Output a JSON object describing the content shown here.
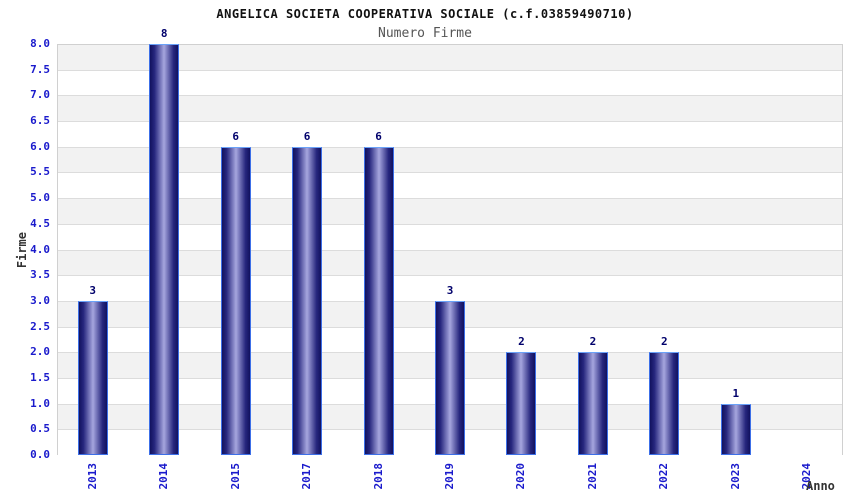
{
  "chart_data": {
    "type": "bar",
    "title": "ANGELICA SOCIETA COOPERATIVA SOCIALE (c.f.03859490710)",
    "subtitle": "Numero Firme",
    "xlabel": "Anno",
    "ylabel": "Firme",
    "categories": [
      "2013",
      "2014",
      "2015",
      "2017",
      "2018",
      "2019",
      "2020",
      "2021",
      "2022",
      "2023",
      "2024"
    ],
    "values": [
      3,
      8,
      6,
      6,
      6,
      3,
      2,
      2,
      2,
      1,
      0
    ],
    "ylim": [
      0,
      8
    ],
    "ytick_step": 0.5,
    "ytick_labels": [
      "8.0",
      "7.5",
      "7.0",
      "6.5",
      "6.0",
      "5.5",
      "5.0",
      "4.5",
      "4.0",
      "3.5",
      "3.0",
      "2.5",
      "2.0",
      "1.5",
      "1.0",
      "0.5",
      "0.0"
    ],
    "grid": "horizontal gridlines every 0.5 with alternating shaded bands",
    "legend": null
  },
  "colors": {
    "axis_tick_label": "#1a1acc",
    "bar_value_label": "#00006b",
    "bar_dark": "#12125e",
    "bar_light": "#a6a6de",
    "bar_border": "#3c6fe8",
    "band_gray": "#f2f2f2",
    "band_white": "#ffffff",
    "grid_line": "#dcdcdc",
    "plot_border": "#d0d0d0",
    "title_color": "#111111",
    "subtitle_color": "#555555",
    "axis_title_color": "#333333"
  }
}
